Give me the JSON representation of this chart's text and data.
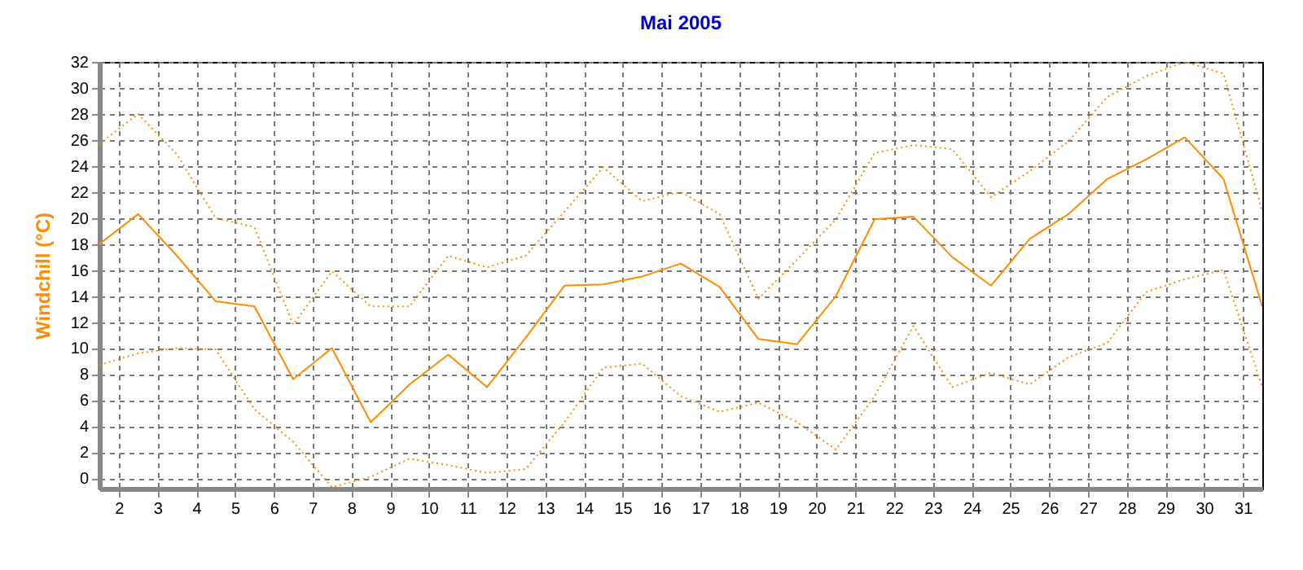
{
  "chart_data": {
    "type": "line",
    "title": "Mai 2005",
    "ylabel": "Windchill  (°C)",
    "x": [
      1.5,
      2.5,
      3.5,
      4.5,
      5.5,
      6.5,
      7.5,
      8.5,
      9.5,
      10.5,
      11.5,
      12.5,
      13.5,
      14.5,
      15.5,
      16.5,
      17.5,
      18.5,
      19.5,
      20.5,
      21.5,
      22.5,
      23.5,
      24.5,
      25.5,
      26.5,
      27.5,
      28.5,
      29.5,
      30.5,
      31.5
    ],
    "series": [
      {
        "color": "#ff8c00",
        "line_style": "dotted",
        "values": [
          25.7,
          28.0,
          24.9,
          20.0,
          19.3,
          11.8,
          15.9,
          13.2,
          13.2,
          17.1,
          16.2,
          17.1,
          20.5,
          23.9,
          21.3,
          22.0,
          20.3,
          13.8,
          16.8,
          19.9,
          25.0,
          25.6,
          25.3,
          21.6,
          23.6,
          25.9,
          29.3,
          30.9,
          32.0,
          31.1,
          20.5
        ]
      },
      {
        "color": "#ff8c00",
        "line_style": "solid",
        "values": [
          18.0,
          20.3,
          17.1,
          13.6,
          13.2,
          7.6,
          10.0,
          4.3,
          7.2,
          9.5,
          7.0,
          10.8,
          14.8,
          14.9,
          15.5,
          16.5,
          14.7,
          10.7,
          10.3,
          14.0,
          19.9,
          20.1,
          17.0,
          14.8,
          18.4,
          20.3,
          23.0,
          24.5,
          26.2,
          23.0,
          13.2
        ]
      },
      {
        "color": "#ff8c00",
        "line_style": "dotted",
        "values": [
          8.7,
          9.6,
          10.0,
          9.9,
          5.3,
          2.8,
          -0.7,
          0.1,
          1.5,
          1.0,
          0.4,
          0.7,
          4.3,
          8.5,
          8.8,
          6.3,
          5.1,
          5.8,
          4.3,
          2.2,
          6.3,
          11.7,
          7.0,
          8.1,
          7.2,
          9.3,
          10.4,
          14.3,
          15.3,
          16.0,
          7.0
        ]
      }
    ],
    "xlim": [
      1.5,
      31.5
    ],
    "xticks": [
      2,
      3,
      4,
      5,
      6,
      7,
      8,
      9,
      10,
      11,
      12,
      13,
      14,
      15,
      16,
      17,
      18,
      19,
      20,
      21,
      22,
      23,
      24,
      25,
      26,
      27,
      28,
      29,
      30,
      31
    ],
    "ylim": [
      -0.8,
      32
    ],
    "yticks": [
      0,
      2,
      4,
      6,
      8,
      10,
      12,
      14,
      16,
      18,
      20,
      22,
      24,
      26,
      28,
      30,
      32
    ],
    "grid": true,
    "legend": false
  }
}
